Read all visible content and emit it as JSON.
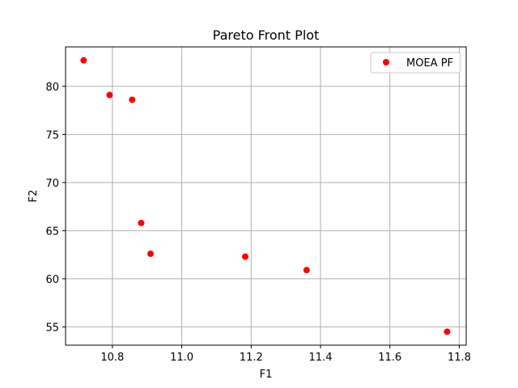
{
  "chart_data": {
    "type": "scatter",
    "title": "Pareto Front Plot",
    "xlabel": "F1",
    "ylabel": "F2",
    "xlim": [
      10.665,
      11.82
    ],
    "ylim": [
      53.1,
      84.1
    ],
    "xticks": [
      10.8,
      11.0,
      11.2,
      11.4,
      11.6,
      11.8
    ],
    "xtick_labels": [
      "10.8",
      "11.0",
      "11.2",
      "11.4",
      "11.6",
      "11.8"
    ],
    "yticks": [
      55,
      60,
      65,
      70,
      75,
      80
    ],
    "ytick_labels": [
      "55",
      "60",
      "65",
      "70",
      "75",
      "80"
    ],
    "grid": true,
    "legend_position": "top-right",
    "series": [
      {
        "name": "MOEA PF",
        "color": "#ff0000",
        "marker": "circle",
        "points": [
          {
            "x": 10.717,
            "y": 82.7
          },
          {
            "x": 10.792,
            "y": 79.1
          },
          {
            "x": 10.857,
            "y": 78.6
          },
          {
            "x": 10.883,
            "y": 65.8
          },
          {
            "x": 10.91,
            "y": 62.6
          },
          {
            "x": 11.183,
            "y": 62.3
          },
          {
            "x": 11.36,
            "y": 60.9
          },
          {
            "x": 11.765,
            "y": 54.5
          }
        ]
      }
    ]
  }
}
